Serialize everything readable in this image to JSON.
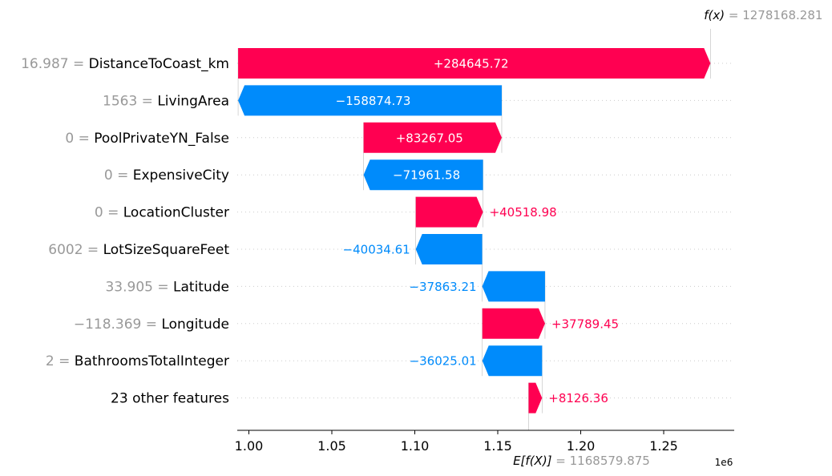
{
  "chart_data": {
    "type": "waterfall",
    "fx": {
      "label": "f(x)",
      "eq": " = ",
      "value": "1278168.281",
      "numeric": 1278168.281
    },
    "efx": {
      "label": "E[f(X)]",
      "eq": " = ",
      "value": "1168579.875",
      "numeric": 1168579.875
    },
    "features": [
      {
        "value": "16.987",
        "name": "DistanceToCoast_km",
        "contribution": 284645.72,
        "label": "+284645.72"
      },
      {
        "value": "1563",
        "name": "LivingArea",
        "contribution": -158874.73,
        "label": "−158874.73"
      },
      {
        "value": "0",
        "name": "PoolPrivateYN_False",
        "contribution": 83267.05,
        "label": "+83267.05"
      },
      {
        "value": "0",
        "name": "ExpensiveCity",
        "contribution": -71961.58,
        "label": "−71961.58"
      },
      {
        "value": "0",
        "name": "LocationCluster",
        "contribution": 40518.98,
        "label": "+40518.98"
      },
      {
        "value": "6002",
        "name": "LotSizeSquareFeet",
        "contribution": -40034.61,
        "label": "−40034.61"
      },
      {
        "value": "33.905",
        "name": "Latitude",
        "contribution": -37863.21,
        "label": "−37863.21"
      },
      {
        "value": "−118.369",
        "name": "Longitude",
        "contribution": 37789.45,
        "label": "+37789.45"
      },
      {
        "value": "2",
        "name": "BathroomsTotalInteger",
        "contribution": -36025.01,
        "label": "−36025.01"
      },
      {
        "value": "",
        "name": "23 other features",
        "contribution": 8126.36,
        "label": "+8126.36"
      }
    ],
    "x_ticks": [
      "1.00",
      "1.05",
      "1.10",
      "1.15",
      "1.20",
      "1.25"
    ],
    "x_tick_values": [
      1.0,
      1.05,
      1.1,
      1.15,
      1.2,
      1.25
    ],
    "x_range": [
      0.993,
      1.2925
    ],
    "x_multiplier": "1e6",
    "colors": {
      "positive": "#ff0051",
      "negative": "#008bfb",
      "muted": "#999999"
    }
  }
}
